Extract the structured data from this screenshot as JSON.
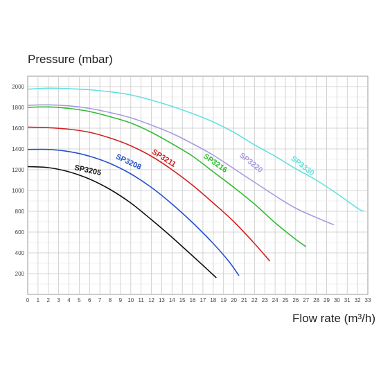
{
  "chart_data": {
    "type": "line",
    "ylabel": "Pressure (mbar)",
    "xlabel": "Flow rate (m³/h)",
    "xlim": [
      0,
      33
    ],
    "ylim": [
      0,
      2100
    ],
    "x_ticks": [
      0,
      1,
      2,
      3,
      4,
      5,
      6,
      7,
      8,
      9,
      10,
      11,
      12,
      13,
      14,
      15,
      16,
      17,
      18,
      19,
      20,
      21,
      22,
      23,
      24,
      25,
      26,
      27,
      28,
      29,
      30,
      31,
      32,
      33
    ],
    "y_ticks": [
      200,
      400,
      600,
      800,
      1000,
      1200,
      1400,
      1600,
      1800,
      2000
    ],
    "grid": true,
    "series": [
      {
        "name": "SP3205",
        "color": "#111111",
        "points": [
          [
            0,
            1230
          ],
          [
            2,
            1220
          ],
          [
            4,
            1180
          ],
          [
            6,
            1110
          ],
          [
            8,
            1010
          ],
          [
            10,
            880
          ],
          [
            12,
            720
          ],
          [
            14,
            550
          ],
          [
            16,
            370
          ],
          [
            17,
            280
          ],
          [
            18.3,
            160
          ]
        ]
      },
      {
        "name": "SP3208",
        "color": "#2450c8",
        "points": [
          [
            0,
            1395
          ],
          [
            2,
            1395
          ],
          [
            4,
            1375
          ],
          [
            6,
            1330
          ],
          [
            8,
            1260
          ],
          [
            10,
            1160
          ],
          [
            12,
            1030
          ],
          [
            14,
            870
          ],
          [
            16,
            690
          ],
          [
            18,
            490
          ],
          [
            19.5,
            320
          ],
          [
            20.5,
            180
          ]
        ]
      },
      {
        "name": "SP3211",
        "color": "#d42020",
        "points": [
          [
            0,
            1610
          ],
          [
            2,
            1605
          ],
          [
            4,
            1590
          ],
          [
            6,
            1560
          ],
          [
            8,
            1505
          ],
          [
            10,
            1430
          ],
          [
            12,
            1330
          ],
          [
            14,
            1200
          ],
          [
            16,
            1050
          ],
          [
            18,
            880
          ],
          [
            20,
            700
          ],
          [
            22,
            490
          ],
          [
            23.5,
            320
          ]
        ]
      },
      {
        "name": "SP3216",
        "color": "#33bb33",
        "points": [
          [
            0,
            1800
          ],
          [
            2,
            1805
          ],
          [
            4,
            1790
          ],
          [
            6,
            1760
          ],
          [
            8,
            1710
          ],
          [
            10,
            1650
          ],
          [
            12,
            1560
          ],
          [
            14,
            1450
          ],
          [
            16,
            1330
          ],
          [
            18,
            1180
          ],
          [
            20,
            1030
          ],
          [
            22,
            870
          ],
          [
            24,
            690
          ],
          [
            26,
            530
          ],
          [
            27,
            460
          ]
        ]
      },
      {
        "name": "SP3220",
        "color": "#a89ce0",
        "points": [
          [
            0,
            1820
          ],
          [
            2,
            1825
          ],
          [
            4,
            1815
          ],
          [
            6,
            1790
          ],
          [
            8,
            1750
          ],
          [
            10,
            1700
          ],
          [
            12,
            1630
          ],
          [
            14,
            1550
          ],
          [
            16,
            1450
          ],
          [
            18,
            1340
          ],
          [
            20,
            1210
          ],
          [
            22,
            1080
          ],
          [
            24,
            950
          ],
          [
            26,
            830
          ],
          [
            28,
            740
          ],
          [
            29.7,
            670
          ]
        ]
      },
      {
        "name": "SP3330",
        "color": "#66e0e0",
        "points": [
          [
            0,
            1975
          ],
          [
            2,
            1985
          ],
          [
            4,
            1980
          ],
          [
            6,
            1970
          ],
          [
            8,
            1950
          ],
          [
            10,
            1920
          ],
          [
            12,
            1870
          ],
          [
            14,
            1810
          ],
          [
            16,
            1740
          ],
          [
            18,
            1660
          ],
          [
            20,
            1560
          ],
          [
            22,
            1440
          ],
          [
            24,
            1330
          ],
          [
            26,
            1210
          ],
          [
            28,
            1100
          ],
          [
            30,
            970
          ],
          [
            32,
            830
          ],
          [
            32.6,
            800
          ]
        ]
      }
    ],
    "labels": [
      {
        "name": "SP3205",
        "at": [
          4.5,
          1200
        ],
        "rotate": 12
      },
      {
        "name": "SP3208",
        "at": [
          8.5,
          1310
        ],
        "rotate": 25
      },
      {
        "name": "SP3211",
        "at": [
          12,
          1360
        ],
        "rotate": 32
      },
      {
        "name": "SP3216",
        "at": [
          17,
          1320
        ],
        "rotate": 35
      },
      {
        "name": "SP3220",
        "at": [
          20.5,
          1330
        ],
        "rotate": 38
      },
      {
        "name": "SP3330",
        "at": [
          25.5,
          1300
        ],
        "rotate": 38
      }
    ]
  }
}
